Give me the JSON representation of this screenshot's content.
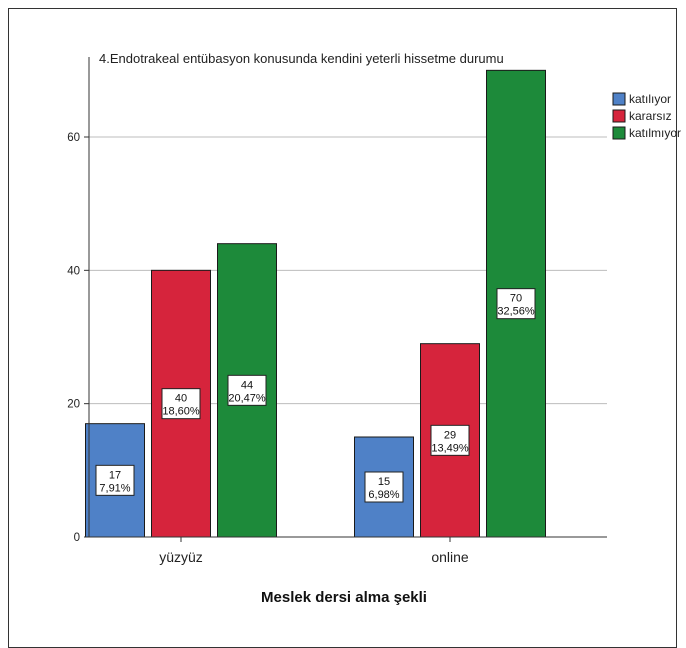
{
  "chart_data": {
    "type": "bar",
    "title": "4.Endotrakeal entübasyon konusunda kendini yeterli hissetme durumu",
    "xlabel": "Meslek dersi alma şekli",
    "ylabel": "",
    "categories": [
      "yüzyüz",
      "online"
    ],
    "series": [
      {
        "name": "katılıyor",
        "color": "#4f81c7",
        "values": [
          17,
          15
        ],
        "labels": [
          "7,91%",
          "6,98%"
        ]
      },
      {
        "name": "kararsız",
        "color": "#d6243c",
        "values": [
          40,
          29
        ],
        "labels": [
          "18,60%",
          "13,49%"
        ]
      },
      {
        "name": "katılmıyor",
        "color": "#1d8a3a",
        "values": [
          44,
          70
        ],
        "labels": [
          "20,47%",
          "32,56%"
        ]
      }
    ],
    "ylim": [
      0,
      70
    ],
    "yticks": [
      0,
      20,
      40,
      60
    ],
    "grid": true,
    "legend_position": "top-right"
  }
}
